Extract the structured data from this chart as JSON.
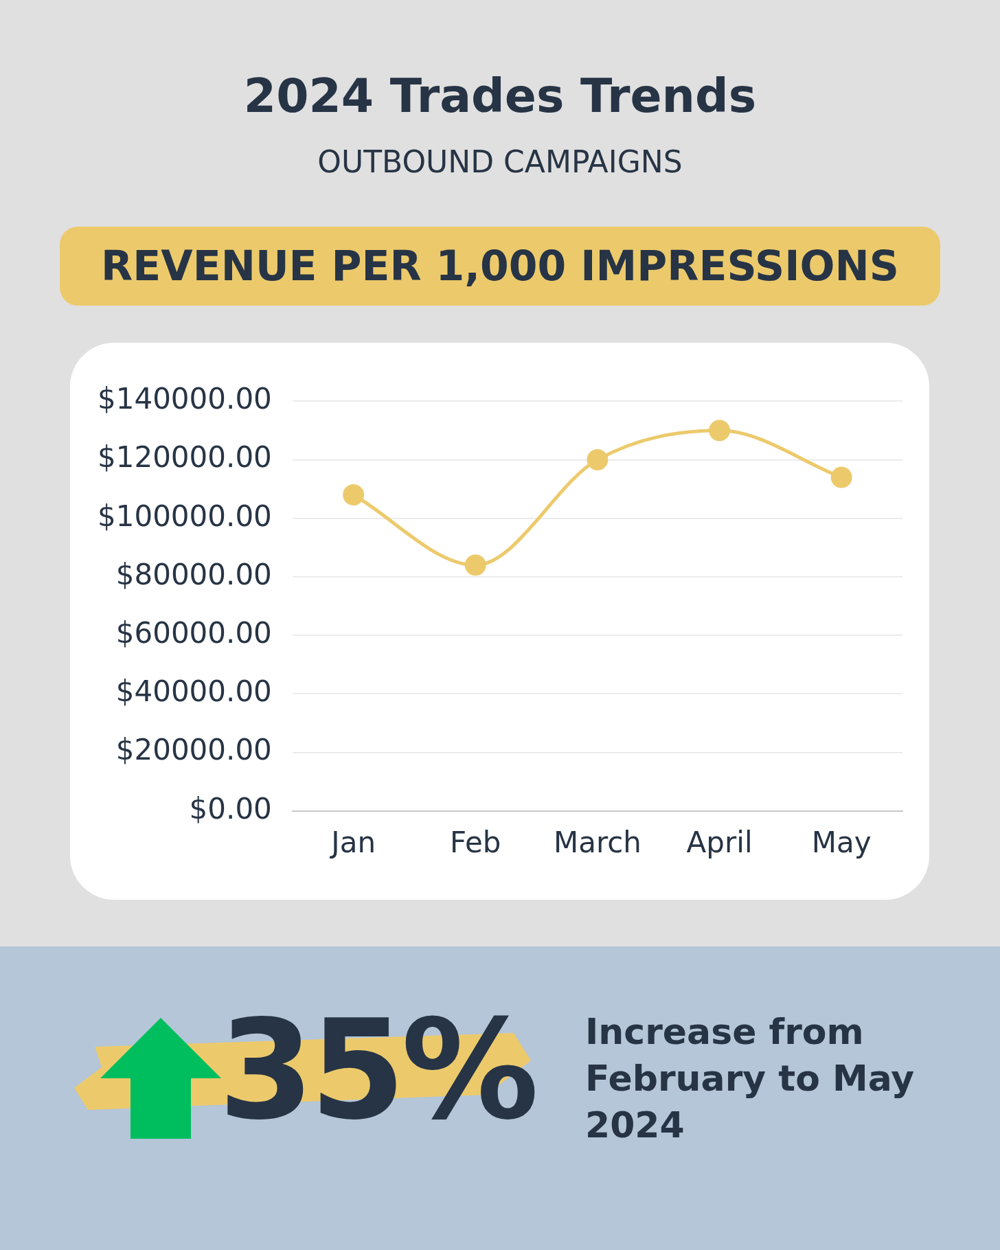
{
  "chart_data": {
    "type": "line",
    "title": "2024 Trades Trends",
    "subtitle": "OUTBOUND CAMPAIGNS",
    "annotations": [
      "REVENUE PER 1,000 IMPRESSIONS",
      "35%",
      "Increase from February to May 2024"
    ],
    "categories": [
      "Jan",
      "Feb",
      "March",
      "April",
      "May"
    ],
    "series": [
      {
        "color": "#ecca6c",
        "values": [
          108000,
          84000,
          120000,
          130000,
          114000
        ]
      }
    ],
    "ylim": [
      0,
      140000
    ],
    "yticks": [
      {
        "value": 0,
        "label": "$0.00"
      },
      {
        "value": 20000,
        "label": "$20000.00"
      },
      {
        "value": 40000,
        "label": "$40000.00"
      },
      {
        "value": 60000,
        "label": "$60000.00"
      },
      {
        "value": 80000,
        "label": "$80000.00"
      },
      {
        "value": 100000,
        "label": "$100000.00"
      },
      {
        "value": 120000,
        "label": "$120000.00"
      },
      {
        "value": 140000,
        "label": "$140000.00"
      }
    ],
    "grid": "y",
    "legend": false,
    "marker": "circle",
    "line_style": "solid"
  }
}
